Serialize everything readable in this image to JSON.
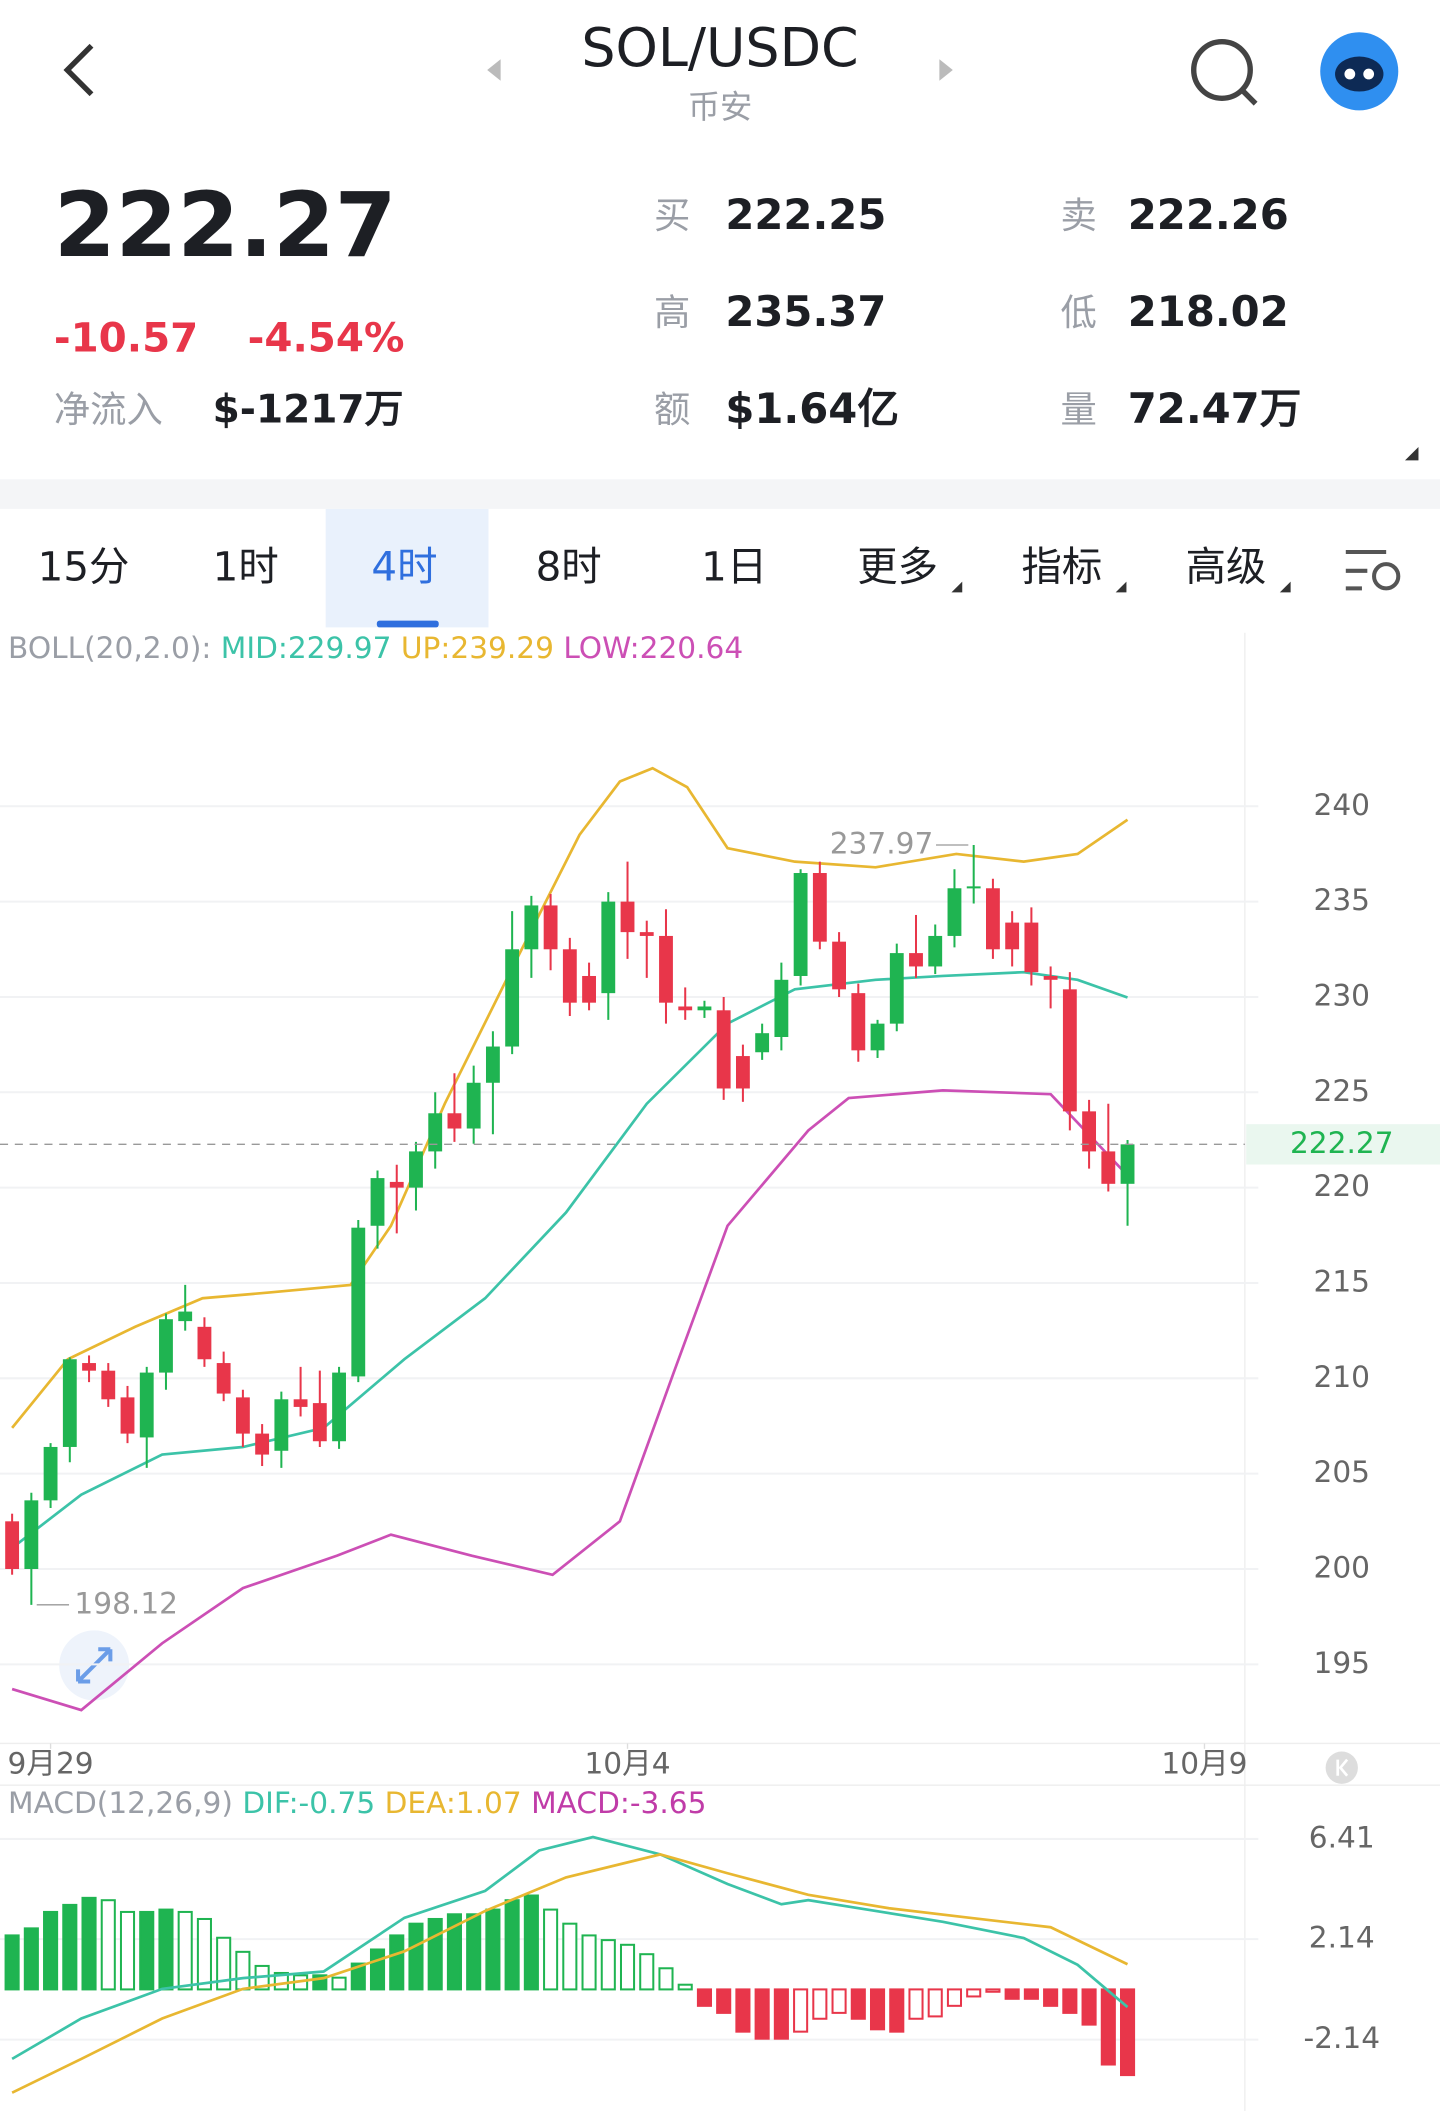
{
  "header": {
    "title": "SOL/USDC",
    "exchange": "币安"
  },
  "quote": {
    "price": "222.27",
    "change": "-10.57",
    "change_pct": "-4.54%",
    "netflow_label": "净流入",
    "netflow": "$-1217万",
    "stats": [
      {
        "label": "买",
        "value": "222.25"
      },
      {
        "label": "卖",
        "value": "222.26"
      },
      {
        "label": "高",
        "value": "235.37"
      },
      {
        "label": "低",
        "value": "218.02"
      },
      {
        "label": "额",
        "value": "$1.64亿"
      },
      {
        "label": "量",
        "value": "72.47万"
      }
    ]
  },
  "tabs": [
    {
      "label": "15分"
    },
    {
      "label": "1时"
    },
    {
      "label": "4时",
      "active": true
    },
    {
      "label": "8时"
    },
    {
      "label": "1日"
    },
    {
      "label": "更多",
      "menu": true
    },
    {
      "label": "指标",
      "menu": true
    },
    {
      "label": "高级",
      "menu": true
    }
  ],
  "chart_data": [
    {
      "type": "candlestick",
      "legend_label": "BOLL(20,2.0):",
      "up_color": "#1fb451",
      "down_color": "#e8364a",
      "xlim": [
        -0.63,
        64.1
      ],
      "xticks": [
        {
          "value": 2,
          "label": "9月29"
        },
        {
          "value": 32,
          "label": "10月4"
        },
        {
          "value": 62,
          "label": "10月9"
        }
      ],
      "ylim": [
        190.85,
        249.1
      ],
      "yticks": [
        195,
        200,
        205,
        210,
        215,
        220,
        225,
        230,
        235,
        240
      ],
      "grid": true,
      "x": [
        0,
        1,
        2,
        3,
        4,
        5,
        6,
        7,
        8,
        9,
        10,
        11,
        12,
        13,
        14,
        15,
        16,
        17,
        18,
        19,
        20,
        21,
        22,
        23,
        24,
        25,
        26,
        27,
        28,
        29,
        30,
        31,
        32,
        33,
        34,
        35,
        36,
        37,
        38,
        39,
        40,
        41,
        42,
        43,
        44,
        45,
        46,
        47,
        48,
        49,
        50,
        51,
        52,
        53,
        54,
        55,
        56,
        57,
        58
      ],
      "candles": [
        [
          202.5,
          202.9,
          199.7,
          200.0
        ],
        [
          200.0,
          204.0,
          198.12,
          203.6
        ],
        [
          203.6,
          206.6,
          203.2,
          206.4
        ],
        [
          206.4,
          211.1,
          205.6,
          211.0
        ],
        [
          210.8,
          211.2,
          209.8,
          210.4
        ],
        [
          210.4,
          210.8,
          208.5,
          208.9
        ],
        [
          209.0,
          209.6,
          206.6,
          207.1
        ],
        [
          206.9,
          210.6,
          205.3,
          210.3
        ],
        [
          210.3,
          213.4,
          209.4,
          213.1
        ],
        [
          213.0,
          214.9,
          212.5,
          213.5
        ],
        [
          212.7,
          213.2,
          210.6,
          211.0
        ],
        [
          210.8,
          211.4,
          208.8,
          209.2
        ],
        [
          209.0,
          209.4,
          206.4,
          207.1
        ],
        [
          207.1,
          207.6,
          205.4,
          206.0
        ],
        [
          206.2,
          209.3,
          205.3,
          208.9
        ],
        [
          208.9,
          210.6,
          208.0,
          208.5
        ],
        [
          208.7,
          210.4,
          206.4,
          206.7
        ],
        [
          206.7,
          210.6,
          206.3,
          210.3
        ],
        [
          210.1,
          218.3,
          209.8,
          217.9
        ],
        [
          218.0,
          220.9,
          216.8,
          220.5
        ],
        [
          220.3,
          221.2,
          217.6,
          220.0
        ],
        [
          220.0,
          222.4,
          218.8,
          221.9
        ],
        [
          221.9,
          225.0,
          221.0,
          223.9
        ],
        [
          223.9,
          226.0,
          222.4,
          223.1
        ],
        [
          223.1,
          226.4,
          222.3,
          225.5
        ],
        [
          225.5,
          228.2,
          222.8,
          227.4
        ],
        [
          227.4,
          234.5,
          227.0,
          232.5
        ],
        [
          232.5,
          235.3,
          231.0,
          234.8
        ],
        [
          234.8,
          235.4,
          231.4,
          232.5
        ],
        [
          232.5,
          233.1,
          229.0,
          229.7
        ],
        [
          231.1,
          231.8,
          229.3,
          229.7
        ],
        [
          230.2,
          235.5,
          228.8,
          235.0
        ],
        [
          235.0,
          237.1,
          232.0,
          233.4
        ],
        [
          233.4,
          234.0,
          231.0,
          233.2
        ],
        [
          233.2,
          234.6,
          228.6,
          229.7
        ],
        [
          229.5,
          230.5,
          228.8,
          229.3
        ],
        [
          229.3,
          229.8,
          228.9,
          229.5
        ],
        [
          229.3,
          230.0,
          224.6,
          225.2
        ],
        [
          226.9,
          227.5,
          224.5,
          225.2
        ],
        [
          227.1,
          228.6,
          226.7,
          228.1
        ],
        [
          227.9,
          231.8,
          227.2,
          230.9
        ],
        [
          231.1,
          236.7,
          230.6,
          236.5
        ],
        [
          236.5,
          237.1,
          232.5,
          232.9
        ],
        [
          232.9,
          233.4,
          230.0,
          230.4
        ],
        [
          230.2,
          230.7,
          226.6,
          227.2
        ],
        [
          227.2,
          228.8,
          226.8,
          228.6
        ],
        [
          228.6,
          232.8,
          228.2,
          232.3
        ],
        [
          232.3,
          234.3,
          231.0,
          231.6
        ],
        [
          231.6,
          233.8,
          231.2,
          233.2
        ],
        [
          233.2,
          236.7,
          232.6,
          235.7
        ],
        [
          235.7,
          237.97,
          234.9,
          235.8
        ],
        [
          235.7,
          236.2,
          232.0,
          232.5
        ],
        [
          233.9,
          234.5,
          231.6,
          232.5
        ],
        [
          233.9,
          234.7,
          230.6,
          231.3
        ],
        [
          231.1,
          231.6,
          229.4,
          230.9
        ],
        [
          230.4,
          231.3,
          223.0,
          224.0
        ],
        [
          224.0,
          224.6,
          221.0,
          221.9
        ],
        [
          221.9,
          224.4,
          219.8,
          220.2
        ],
        [
          220.2,
          222.5,
          218.0,
          222.27
        ]
      ],
      "series": [
        {
          "name": "MID:229.97",
          "color": "#3cc3a8",
          "x": [
            0,
            3.6,
            7.8,
            12,
            16.2,
            20.4,
            24.6,
            28.8,
            33,
            37.2,
            40.7,
            44.9,
            48.4,
            52.6,
            55.4,
            58
          ],
          "values": [
            201.1,
            203.9,
            206,
            206.4,
            207.4,
            211,
            214.2,
            218.7,
            224.4,
            228.6,
            230.4,
            230.9,
            231.1,
            231.3,
            230.9,
            229.97
          ]
        },
        {
          "name": "UP:239.29",
          "color": "#e8b731",
          "x": [
            0,
            2.9,
            6.4,
            9.9,
            13.4,
            17.6,
            19.7,
            22.5,
            26,
            29.5,
            31.6,
            33.3,
            35.1,
            37.2,
            40.7,
            44.9,
            49.1,
            52.6,
            55.4,
            58
          ],
          "values": [
            207.4,
            211,
            212.7,
            214.2,
            214.5,
            214.9,
            218,
            224.4,
            231.5,
            238.5,
            241.3,
            242,
            241,
            237.8,
            237.1,
            236.8,
            237.5,
            237.1,
            237.5,
            239.29
          ]
        },
        {
          "name": "LOW:220.64",
          "color": "#cc4fb5",
          "x": [
            0,
            3.6,
            7.8,
            12,
            16.9,
            19.7,
            23.9,
            28.1,
            31.6,
            34.4,
            37.2,
            41.4,
            43.5,
            48.4,
            54,
            58
          ],
          "values": [
            193.7,
            192.6,
            196.1,
            199,
            200.7,
            201.8,
            200.7,
            199.7,
            202.5,
            210.3,
            218,
            223,
            224.7,
            225.1,
            224.9,
            220.64
          ]
        }
      ]
    },
    {
      "type": "macd",
      "legend_label": "MACD(12,26,9)",
      "up_color": "#1fb451",
      "down_color": "#e8364a",
      "xlim": [
        -0.63,
        64.1
      ],
      "ylim": [
        -5.18,
        8.47
      ],
      "yticks": [
        6.41,
        2.14,
        -2.14
      ],
      "grid": true,
      "bars": {
        "name": "MACD:-3.65",
        "color": "#c03ca8",
        "x": [
          0,
          1,
          2,
          3,
          4,
          5,
          6,
          7,
          8,
          9,
          10,
          11,
          12,
          13,
          14,
          15,
          16,
          17,
          18,
          19,
          20,
          21,
          22,
          23,
          24,
          25,
          26,
          27,
          28,
          29,
          30,
          31,
          32,
          33,
          34,
          35,
          36,
          37,
          38,
          39,
          40,
          41,
          42,
          43,
          44,
          45,
          46,
          47,
          48,
          49,
          50,
          51,
          52,
          53,
          54,
          55,
          56,
          57,
          58
        ],
        "values": [
          2.3,
          2.6,
          3.3,
          3.6,
          3.9,
          3.8,
          3.3,
          3.3,
          3.4,
          3.3,
          3.0,
          2.2,
          1.6,
          1.0,
          0.7,
          0.6,
          0.6,
          0.5,
          1.1,
          1.7,
          2.3,
          2.8,
          3.0,
          3.2,
          3.2,
          3.4,
          3.8,
          4.0,
          3.4,
          2.8,
          2.3,
          2.1,
          1.9,
          1.5,
          0.9,
          0.2,
          -0.7,
          -1.0,
          -1.8,
          -2.1,
          -2.1,
          -1.8,
          -1.25,
          -1.0,
          -1.25,
          -1.7,
          -1.8,
          -1.25,
          -1.15,
          -0.7,
          -0.3,
          -0.1,
          -0.4,
          -0.4,
          -0.7,
          -1.0,
          -1.5,
          -3.2,
          -3.65
        ]
      },
      "series": [
        {
          "name": "DIF:-0.75",
          "color": "#3cc3a8",
          "x": [
            0,
            3.6,
            7.8,
            12,
            16.2,
            20.4,
            24.6,
            27.4,
            30.2,
            33.7,
            37.2,
            40,
            41.4,
            44.9,
            48.4,
            52.6,
            55.4,
            58
          ],
          "values": [
            -2.96,
            -1.24,
            0.02,
            0.48,
            0.76,
            3.05,
            4.2,
            5.92,
            6.49,
            5.75,
            4.49,
            3.63,
            3.8,
            3.34,
            2.88,
            2.19,
            1.05,
            -0.75
          ]
        },
        {
          "name": "DEA:1.07",
          "color": "#e8b731",
          "x": [
            0,
            3.6,
            7.8,
            12,
            16.2,
            20.4,
            24.6,
            28.8,
            33.7,
            37.2,
            41.4,
            45.6,
            49.8,
            54,
            58
          ],
          "values": [
            -4.4,
            -2.96,
            -1.24,
            0.02,
            0.48,
            1.62,
            3.34,
            4.77,
            5.75,
            4.95,
            4.03,
            3.46,
            3.05,
            2.65,
            1.07
          ]
        }
      ]
    }
  ]
}
